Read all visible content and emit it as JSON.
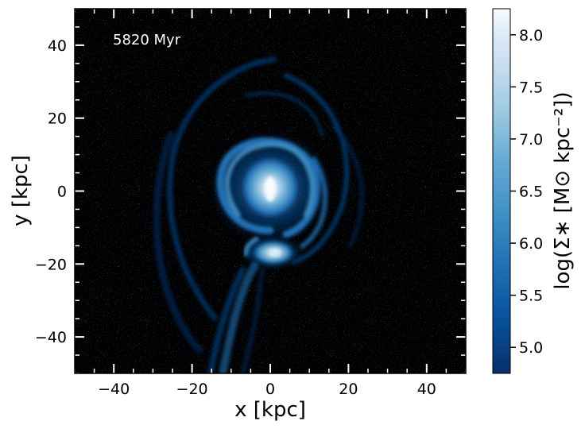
{
  "annotation": "5820 Myr",
  "chart_data": {
    "type": "heatmap",
    "xlabel": "x [kpc]",
    "ylabel": "y [kpc]",
    "xlim": [
      -50,
      50
    ],
    "ylim": [
      -50,
      50
    ],
    "xticks": [
      -40,
      -20,
      0,
      20,
      40
    ],
    "xtick_labels": [
      "−40",
      "−20",
      "0",
      "20",
      "40"
    ],
    "yticks": [
      40,
      20,
      0,
      -20,
      -40
    ],
    "ytick_labels": [
      "40",
      "20",
      "0",
      "−20",
      "−40"
    ],
    "colorbar": {
      "label": "log(Σ∗  [M⊙ kpc⁻²])",
      "range": [
        4.75,
        8.25
      ],
      "ticks": [
        8.0,
        7.5,
        7.0,
        6.5,
        6.0,
        5.5,
        5.0
      ],
      "tick_labels": [
        "8.0",
        "7.5",
        "7.0",
        "6.5",
        "6.0",
        "5.5",
        "5.0"
      ],
      "colormap": "Blues_r",
      "colors": [
        "#08306b",
        "#08519c",
        "#2171b5",
        "#4292c6",
        "#6baed6",
        "#9ecae1",
        "#c6dbef",
        "#deebf7",
        "#f7fbff"
      ]
    },
    "background_color": "#000000"
  }
}
